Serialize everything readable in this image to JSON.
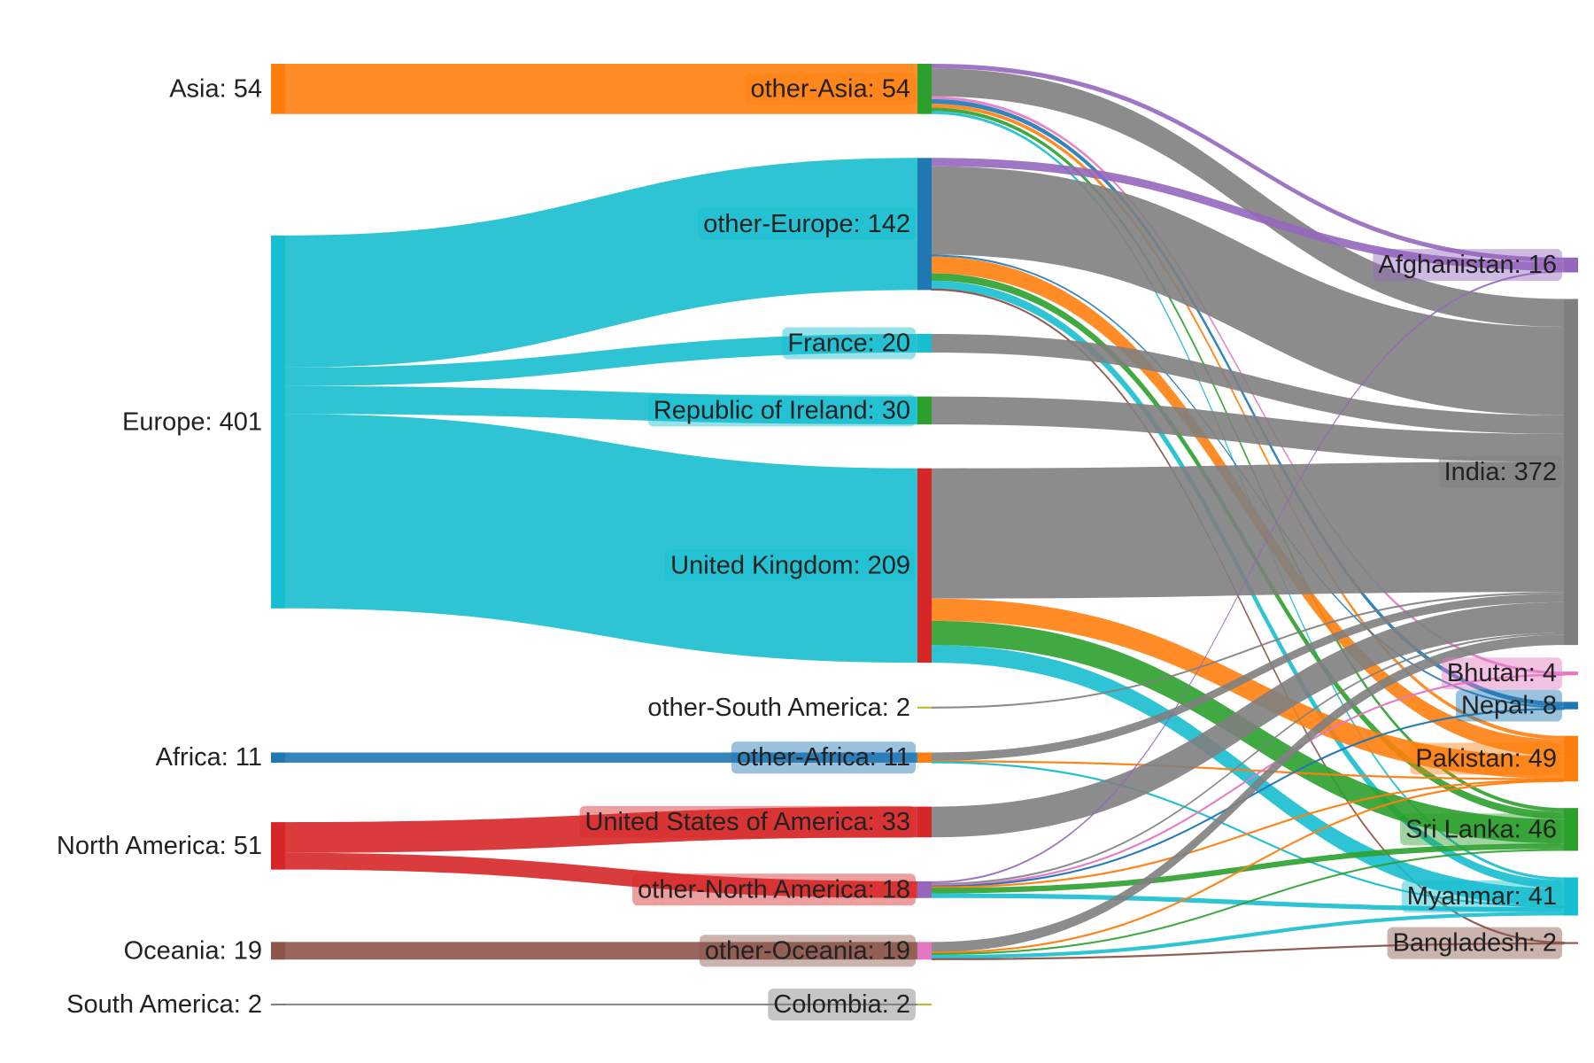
{
  "chart_data": {
    "type": "sankey",
    "nodes": [
      {
        "label": "Asia: 54",
        "value": 54,
        "column": 0,
        "color": "#ff7f0e"
      },
      {
        "label": "Europe: 401",
        "value": 401,
        "column": 0,
        "color": "#17becf"
      },
      {
        "label": "Africa: 11",
        "value": 11,
        "column": 0,
        "color": "#1f77b4"
      },
      {
        "label": "North America: 51",
        "value": 51,
        "column": 0,
        "color": "#d62728"
      },
      {
        "label": "Oceania: 19",
        "value": 19,
        "column": 0,
        "color": "#8c564b"
      },
      {
        "label": "South America: 2",
        "value": 2,
        "column": 0,
        "color": "#7f7f7f"
      },
      {
        "label": "other-Asia: 54",
        "value": 54,
        "column": 1,
        "color": "#2ca02c"
      },
      {
        "label": "other-Europe: 142",
        "value": 142,
        "column": 1,
        "color": "#1f77b4"
      },
      {
        "label": "France: 20",
        "value": 20,
        "column": 1,
        "color": "#17becf"
      },
      {
        "label": "Republic of Ireland: 30",
        "value": 30,
        "column": 1,
        "color": "#2ca02c"
      },
      {
        "label": "United Kingdom: 209",
        "value": 209,
        "column": 1,
        "color": "#d62728"
      },
      {
        "label": "other-South America: 2",
        "value": 2,
        "column": 1,
        "color": "#bcbd22"
      },
      {
        "label": "other-Africa: 11",
        "value": 11,
        "column": 1,
        "color": "#ff7f0e"
      },
      {
        "label": "United States of America: 33",
        "value": 33,
        "column": 1,
        "color": "#d62728"
      },
      {
        "label": "other-North America: 18",
        "value": 18,
        "column": 1,
        "color": "#9467bd"
      },
      {
        "label": "other-Oceania: 19",
        "value": 19,
        "column": 1,
        "color": "#e377c2"
      },
      {
        "label": "Colombia: 2",
        "value": 2,
        "column": 1,
        "color": "#bcbd22"
      },
      {
        "label": "Afghanistan: 16",
        "value": 16,
        "column": 2,
        "color": "#9467bd"
      },
      {
        "label": "India: 372",
        "value": 372,
        "column": 2,
        "color": "#7f7f7f"
      },
      {
        "label": "Bhutan: 4",
        "value": 4,
        "column": 2,
        "color": "#e377c2"
      },
      {
        "label": "Nepal: 8",
        "value": 8,
        "column": 2,
        "color": "#1f77b4"
      },
      {
        "label": "Pakistan: 49",
        "value": 49,
        "column": 2,
        "color": "#ff7f0e"
      },
      {
        "label": "Sri Lanka: 46",
        "value": 46,
        "column": 2,
        "color": "#2ca02c"
      },
      {
        "label": "Myanmar: 41",
        "value": 41,
        "column": 2,
        "color": "#17becf"
      },
      {
        "label": "Bangladesh: 2",
        "value": 2,
        "column": 2,
        "color": "#8c564b"
      }
    ],
    "links": [
      {
        "source": 0,
        "target": 6,
        "value": 54
      },
      {
        "source": 1,
        "target": 7,
        "value": 142
      },
      {
        "source": 1,
        "target": 8,
        "value": 20
      },
      {
        "source": 1,
        "target": 9,
        "value": 30
      },
      {
        "source": 1,
        "target": 10,
        "value": 209
      },
      {
        "source": 2,
        "target": 12,
        "value": 11
      },
      {
        "source": 3,
        "target": 13,
        "value": 33
      },
      {
        "source": 3,
        "target": 14,
        "value": 18
      },
      {
        "source": 4,
        "target": 15,
        "value": 19
      },
      {
        "source": 5,
        "target": 16,
        "value": 2
      },
      {
        "source": 6,
        "target": 17,
        "value": 5
      },
      {
        "source": 6,
        "target": 18,
        "value": 30
      },
      {
        "source": 6,
        "target": 19,
        "value": 3
      },
      {
        "source": 6,
        "target": 20,
        "value": 5
      },
      {
        "source": 6,
        "target": 21,
        "value": 4
      },
      {
        "source": 6,
        "target": 22,
        "value": 4
      },
      {
        "source": 6,
        "target": 23,
        "value": 3
      },
      {
        "source": 7,
        "target": 17,
        "value": 9
      },
      {
        "source": 7,
        "target": 18,
        "value": 95
      },
      {
        "source": 7,
        "target": 20,
        "value": 2
      },
      {
        "source": 7,
        "target": 21,
        "value": 18
      },
      {
        "source": 7,
        "target": 22,
        "value": 8
      },
      {
        "source": 7,
        "target": 23,
        "value": 9
      },
      {
        "source": 7,
        "target": 24,
        "value": 1
      },
      {
        "source": 8,
        "target": 18,
        "value": 20
      },
      {
        "source": 9,
        "target": 18,
        "value": 30
      },
      {
        "source": 10,
        "target": 18,
        "value": 140
      },
      {
        "source": 10,
        "target": 21,
        "value": 24
      },
      {
        "source": 10,
        "target": 22,
        "value": 26
      },
      {
        "source": 10,
        "target": 23,
        "value": 19
      },
      {
        "source": 11,
        "target": 18,
        "value": 2
      },
      {
        "source": 12,
        "target": 18,
        "value": 9
      },
      {
        "source": 12,
        "target": 21,
        "value": 1
      },
      {
        "source": 12,
        "target": 23,
        "value": 1
      },
      {
        "source": 13,
        "target": 18,
        "value": 33
      },
      {
        "source": 14,
        "target": 17,
        "value": 2
      },
      {
        "source": 14,
        "target": 18,
        "value": 2
      },
      {
        "source": 14,
        "target": 19,
        "value": 1
      },
      {
        "source": 14,
        "target": 20,
        "value": 1
      },
      {
        "source": 14,
        "target": 21,
        "value": 1
      },
      {
        "source": 14,
        "target": 22,
        "value": 6
      },
      {
        "source": 14,
        "target": 23,
        "value": 5
      },
      {
        "source": 15,
        "target": 18,
        "value": 11
      },
      {
        "source": 15,
        "target": 21,
        "value": 1
      },
      {
        "source": 15,
        "target": 22,
        "value": 2
      },
      {
        "source": 15,
        "target": 23,
        "value": 4
      },
      {
        "source": 15,
        "target": 24,
        "value": 1
      }
    ]
  }
}
